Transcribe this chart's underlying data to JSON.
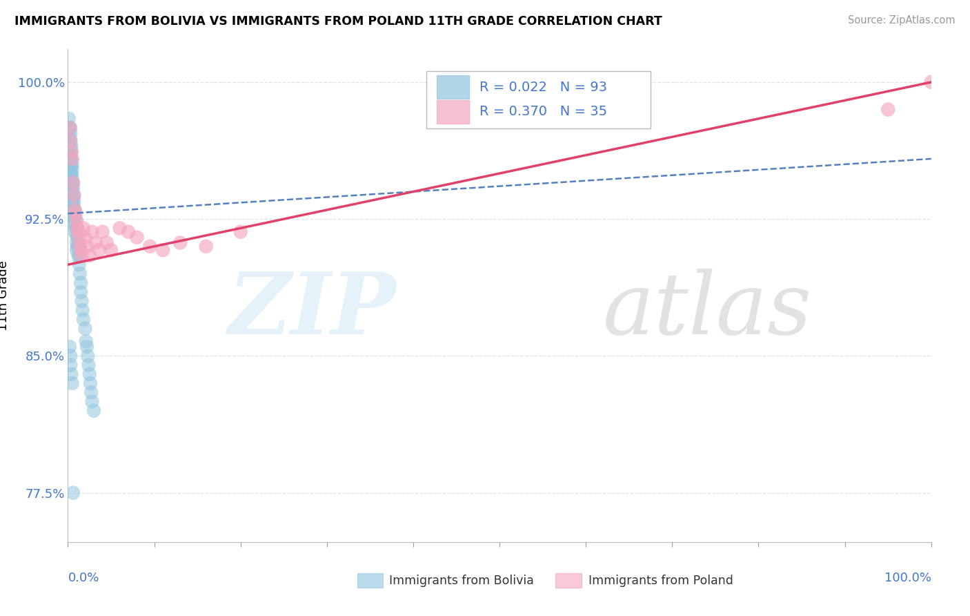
{
  "title": "IMMIGRANTS FROM BOLIVIA VS IMMIGRANTS FROM POLAND 11TH GRADE CORRELATION CHART",
  "source": "Source: ZipAtlas.com",
  "ylabel": "11th Grade",
  "xlim": [
    0,
    1
  ],
  "ylim": [
    0.748,
    1.018
  ],
  "yticks": [
    0.775,
    0.85,
    0.925,
    1.0
  ],
  "ytick_labels": [
    "77.5%",
    "85.0%",
    "92.5%",
    "100.0%"
  ],
  "legend_r1": "R = 0.022",
  "legend_n1": "N = 93",
  "legend_r2": "R = 0.370",
  "legend_n2": "N = 35",
  "bolivia_color": "#92c5de",
  "poland_color": "#f4a6be",
  "trend_bolivia_color": "#5580c0",
  "trend_poland_color": "#e0406a",
  "bolivia_x": [
    0.001,
    0.001,
    0.002,
    0.002,
    0.002,
    0.002,
    0.002,
    0.002,
    0.002,
    0.002,
    0.002,
    0.002,
    0.002,
    0.002,
    0.002,
    0.002,
    0.002,
    0.003,
    0.003,
    0.003,
    0.003,
    0.003,
    0.003,
    0.003,
    0.003,
    0.003,
    0.003,
    0.004,
    0.004,
    0.004,
    0.004,
    0.004,
    0.004,
    0.004,
    0.004,
    0.004,
    0.005,
    0.005,
    0.005,
    0.005,
    0.005,
    0.005,
    0.005,
    0.005,
    0.006,
    0.006,
    0.006,
    0.006,
    0.006,
    0.006,
    0.007,
    0.007,
    0.007,
    0.007,
    0.007,
    0.008,
    0.008,
    0.008,
    0.008,
    0.009,
    0.009,
    0.01,
    0.01,
    0.01,
    0.01,
    0.011,
    0.011,
    0.012,
    0.012,
    0.013,
    0.013,
    0.014,
    0.015,
    0.015,
    0.016,
    0.017,
    0.018,
    0.02,
    0.021,
    0.022,
    0.023,
    0.024,
    0.025,
    0.026,
    0.027,
    0.028,
    0.03,
    0.002,
    0.003,
    0.003,
    0.004,
    0.005,
    0.006
  ],
  "bolivia_y": [
    0.98,
    0.975,
    0.975,
    0.97,
    0.965,
    0.96,
    0.958,
    0.956,
    0.954,
    0.952,
    0.95,
    0.948,
    0.946,
    0.944,
    0.942,
    0.94,
    0.938,
    0.975,
    0.972,
    0.968,
    0.964,
    0.96,
    0.956,
    0.952,
    0.948,
    0.944,
    0.94,
    0.965,
    0.962,
    0.958,
    0.954,
    0.95,
    0.946,
    0.942,
    0.938,
    0.934,
    0.955,
    0.952,
    0.948,
    0.944,
    0.94,
    0.936,
    0.932,
    0.928,
    0.945,
    0.942,
    0.938,
    0.934,
    0.93,
    0.926,
    0.938,
    0.935,
    0.931,
    0.927,
    0.923,
    0.93,
    0.926,
    0.922,
    0.918,
    0.925,
    0.92,
    0.92,
    0.916,
    0.912,
    0.908,
    0.915,
    0.91,
    0.91,
    0.905,
    0.905,
    0.9,
    0.895,
    0.89,
    0.885,
    0.88,
    0.875,
    0.87,
    0.865,
    0.858,
    0.855,
    0.85,
    0.845,
    0.84,
    0.835,
    0.83,
    0.825,
    0.82,
    0.855,
    0.85,
    0.845,
    0.84,
    0.835,
    0.775
  ],
  "poland_x": [
    0.002,
    0.003,
    0.004,
    0.005,
    0.006,
    0.007,
    0.008,
    0.009,
    0.01,
    0.011,
    0.012,
    0.013,
    0.014,
    0.015,
    0.016,
    0.018,
    0.02,
    0.022,
    0.025,
    0.028,
    0.032,
    0.036,
    0.04,
    0.045,
    0.05,
    0.06,
    0.07,
    0.08,
    0.095,
    0.11,
    0.13,
    0.16,
    0.2,
    0.95,
    1.0
  ],
  "poland_y": [
    0.975,
    0.968,
    0.962,
    0.958,
    0.945,
    0.938,
    0.93,
    0.928,
    0.924,
    0.92,
    0.918,
    0.915,
    0.91,
    0.908,
    0.905,
    0.92,
    0.915,
    0.91,
    0.905,
    0.918,
    0.912,
    0.908,
    0.918,
    0.912,
    0.908,
    0.92,
    0.918,
    0.915,
    0.91,
    0.908,
    0.912,
    0.91,
    0.918,
    0.985,
    1.0
  ],
  "trend_bolivia_start_y": 0.928,
  "trend_bolivia_end_y": 0.958,
  "trend_poland_start_y": 0.9,
  "trend_poland_end_y": 1.0
}
